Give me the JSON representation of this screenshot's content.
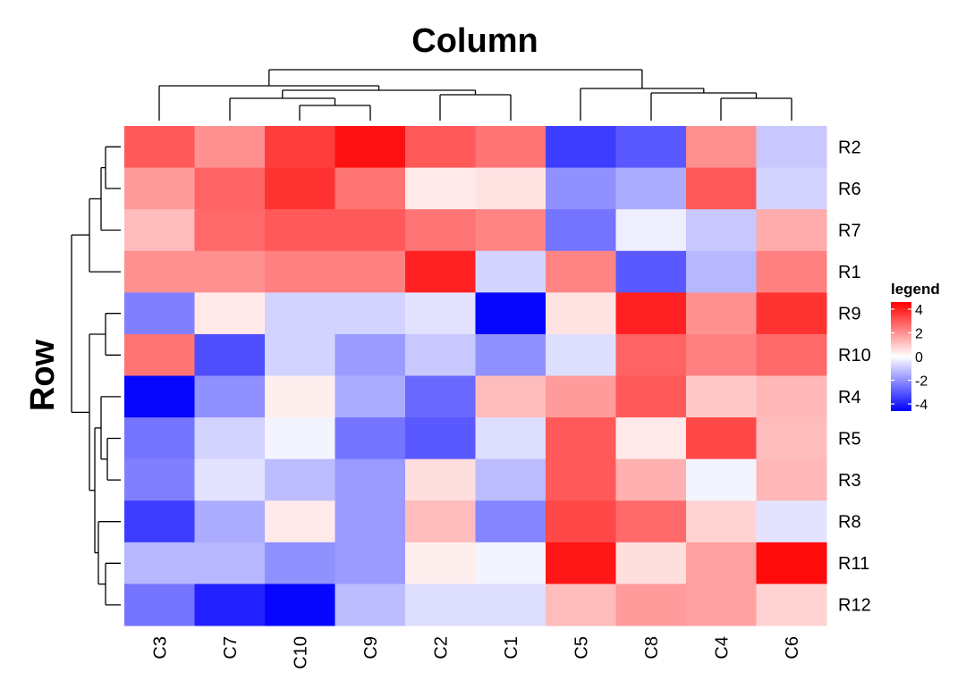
{
  "chart_data": {
    "type": "heatmap",
    "title": "Column",
    "y_label": "Row",
    "legend_title": "legend",
    "x": [
      "C3",
      "C7",
      "C10",
      "C9",
      "C2",
      "C1",
      "C5",
      "C8",
      "C4",
      "C6"
    ],
    "y": [
      "R2",
      "R6",
      "R7",
      "R1",
      "R9",
      "R10",
      "R4",
      "R5",
      "R3",
      "R8",
      "R11",
      "R12"
    ],
    "values": [
      [
        3,
        2,
        3.5,
        4.3,
        3,
        2.5,
        -3.5,
        -3,
        2,
        -1
      ],
      [
        1.8,
        2.8,
        3.7,
        2.5,
        0.4,
        0.5,
        -2,
        -1.5,
        3,
        -0.8
      ],
      [
        1.2,
        2.7,
        3,
        3,
        2.5,
        2.2,
        -2.5,
        -0.3,
        -1,
        1.5
      ],
      [
        2,
        2,
        2.3,
        2.3,
        4,
        -0.8,
        2.2,
        -3,
        -1.3,
        2.3
      ],
      [
        -2.3,
        0.4,
        -0.8,
        -0.8,
        -0.5,
        -4.5,
        0.5,
        4,
        2,
        3.7
      ],
      [
        2.5,
        -3.2,
        -0.8,
        -1.8,
        -1,
        -2,
        -0.6,
        2.8,
        2.3,
        2.7
      ],
      [
        -4.5,
        -2,
        0.3,
        -1.5,
        -2.7,
        1.2,
        1.8,
        3,
        1,
        1.3
      ],
      [
        -2.5,
        -0.8,
        -0.2,
        -2.5,
        -3,
        -0.6,
        3,
        0.4,
        3.3,
        1.2
      ],
      [
        -2.3,
        -0.5,
        -1.2,
        -1.8,
        0.6,
        -1.2,
        3,
        1.4,
        -0.2,
        1.3
      ],
      [
        -3.5,
        -1.5,
        0.4,
        -1.8,
        1.2,
        -2.2,
        3.3,
        2.7,
        0.8,
        -0.5
      ],
      [
        -1.3,
        -1.3,
        -2,
        -1.8,
        0.3,
        -0.2,
        4.2,
        0.6,
        1.7,
        4.4
      ],
      [
        -2.5,
        -4,
        -4.5,
        -1.2,
        -0.6,
        -0.6,
        1.2,
        1.8,
        1.7,
        0.8
      ]
    ],
    "colors": [
      "#0000FF",
      "#FFFFFF",
      "#FF0000"
    ],
    "clim": [
      -4.6,
      4.6
    ],
    "cticks": [
      4,
      2,
      0,
      -2,
      -4
    ]
  }
}
